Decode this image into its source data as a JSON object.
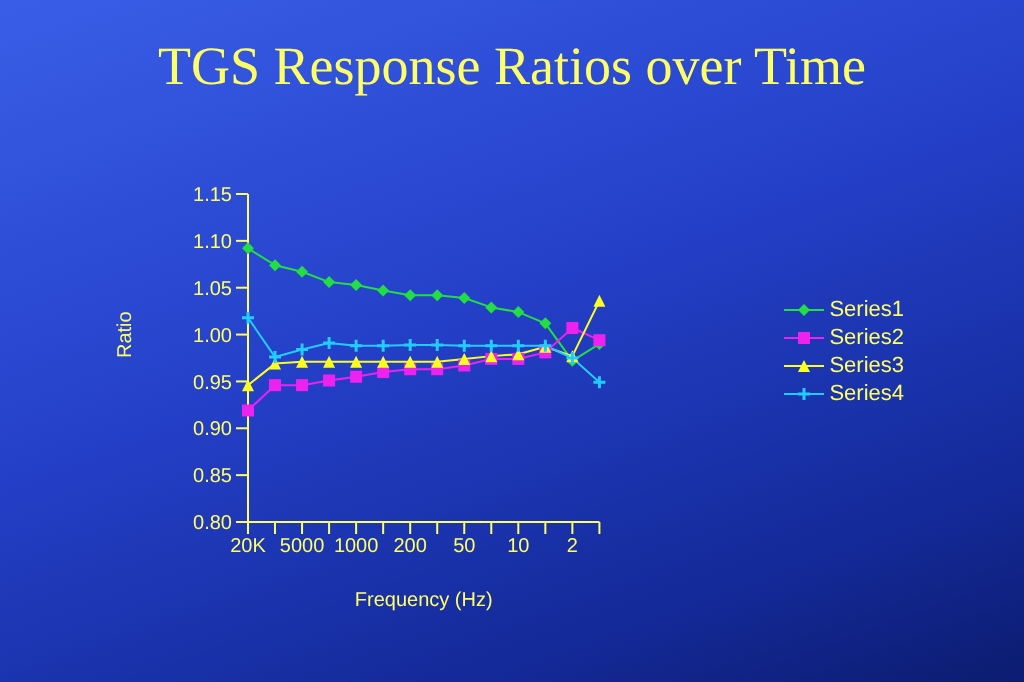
{
  "chart_data": {
    "type": "line",
    "title": "TGS Response Ratios over Time",
    "xlabel": "Frequency (Hz)",
    "ylabel": "Ratio",
    "categories": [
      "20K",
      null,
      "5000",
      null,
      "1000",
      null,
      "200",
      null,
      "50",
      null,
      "10",
      null,
      "2",
      null
    ],
    "series": [
      {
        "name": "Series1",
        "color": "#22dd44",
        "marker": "diamond",
        "values": [
          1.092,
          1.074,
          1.067,
          1.056,
          1.053,
          1.047,
          1.042,
          1.042,
          1.039,
          1.029,
          1.024,
          1.012,
          0.972,
          0.99
        ]
      },
      {
        "name": "Series2",
        "color": "#ee22ee",
        "marker": "square",
        "values": [
          0.919,
          0.946,
          0.946,
          0.951,
          0.955,
          0.96,
          0.963,
          0.963,
          0.967,
          0.974,
          0.974,
          0.981,
          1.007,
          0.994
        ]
      },
      {
        "name": "Series3",
        "color": "#ffff22",
        "marker": "triangle",
        "values": [
          0.946,
          0.969,
          0.971,
          0.971,
          0.971,
          0.971,
          0.971,
          0.971,
          0.974,
          0.977,
          0.979,
          0.987,
          0.977,
          1.036
        ]
      },
      {
        "name": "Series4",
        "color": "#22ccff",
        "marker": "cross",
        "values": [
          1.018,
          0.976,
          0.984,
          0.991,
          0.988,
          0.988,
          0.989,
          0.989,
          0.988,
          0.988,
          0.988,
          0.988,
          0.975,
          0.949
        ]
      }
    ],
    "ylim": [
      0.8,
      1.15
    ],
    "yticks": [
      {
        "value": 0.8,
        "label": "0.80"
      },
      {
        "value": 0.85,
        "label": "0.85"
      },
      {
        "value": 0.9,
        "label": "0.90"
      },
      {
        "value": 0.95,
        "label": "0.95"
      },
      {
        "value": 1.0,
        "label": "1.00"
      },
      {
        "value": 1.05,
        "label": "1.05"
      },
      {
        "value": 1.1,
        "label": "1.10"
      },
      {
        "value": 1.15,
        "label": "1.15"
      }
    ],
    "grid": false,
    "legend": "right",
    "line_style": "solid"
  }
}
